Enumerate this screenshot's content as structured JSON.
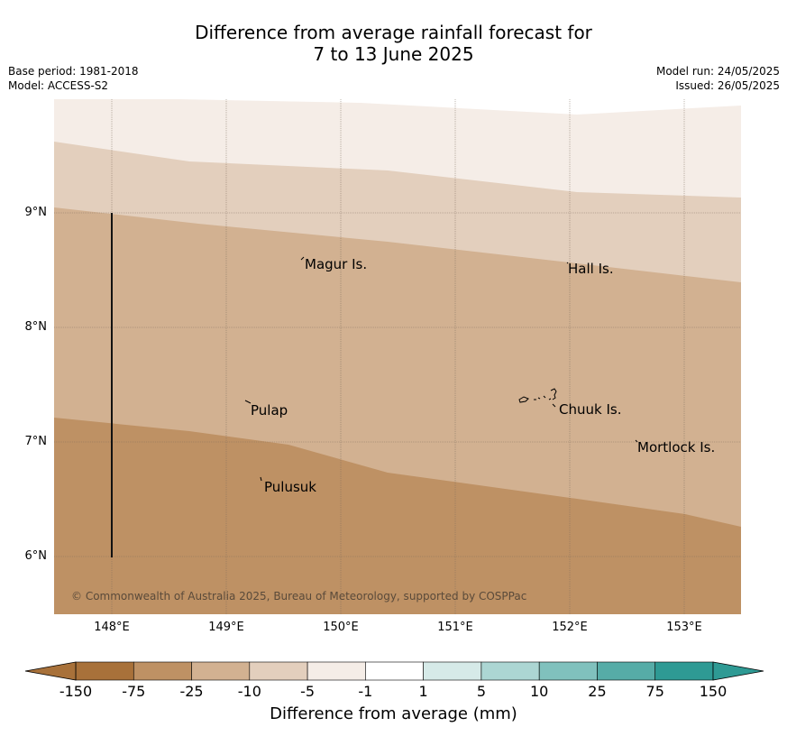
{
  "header": {
    "title_line1": "Difference from average rainfall forecast for",
    "title_line2": "7 to 13 June 2025",
    "base_period": "Base period: 1981-2018",
    "model": "Model: ACCESS-S2",
    "model_run": "Model run: 24/05/2025",
    "issued": "Issued: 26/05/2025"
  },
  "map": {
    "lat_labels": [
      "9°N",
      "8°N",
      "7°N",
      "6°N"
    ],
    "lon_labels": [
      "148°E",
      "149°E",
      "150°E",
      "151°E",
      "152°E",
      "153°E"
    ],
    "places": {
      "magur": "Magur Is.",
      "hall": "Hall Is.",
      "pulap": "Pulap",
      "chuuk": "Chuuk Is.",
      "mortlock": "Mortlock Is.",
      "pulusuk": "Pulusuk"
    },
    "copyright": "© Commonwealth of Australia 2025, Bureau of Meteorology, supported by COSPPac"
  },
  "legend": {
    "ticks": [
      "-150",
      "-75",
      "-25",
      "-10",
      "-5",
      "-1",
      "1",
      "5",
      "10",
      "25",
      "75",
      "150"
    ],
    "colors": [
      "#a8713a",
      "#be9164",
      "#d2b191",
      "#e3cfbd",
      "#f5ede7",
      "#ffffff",
      "#d6eae8",
      "#acd6d3",
      "#80c1bd",
      "#56aca7",
      "#2e9a94"
    ],
    "title": "Difference from average (mm)"
  }
}
